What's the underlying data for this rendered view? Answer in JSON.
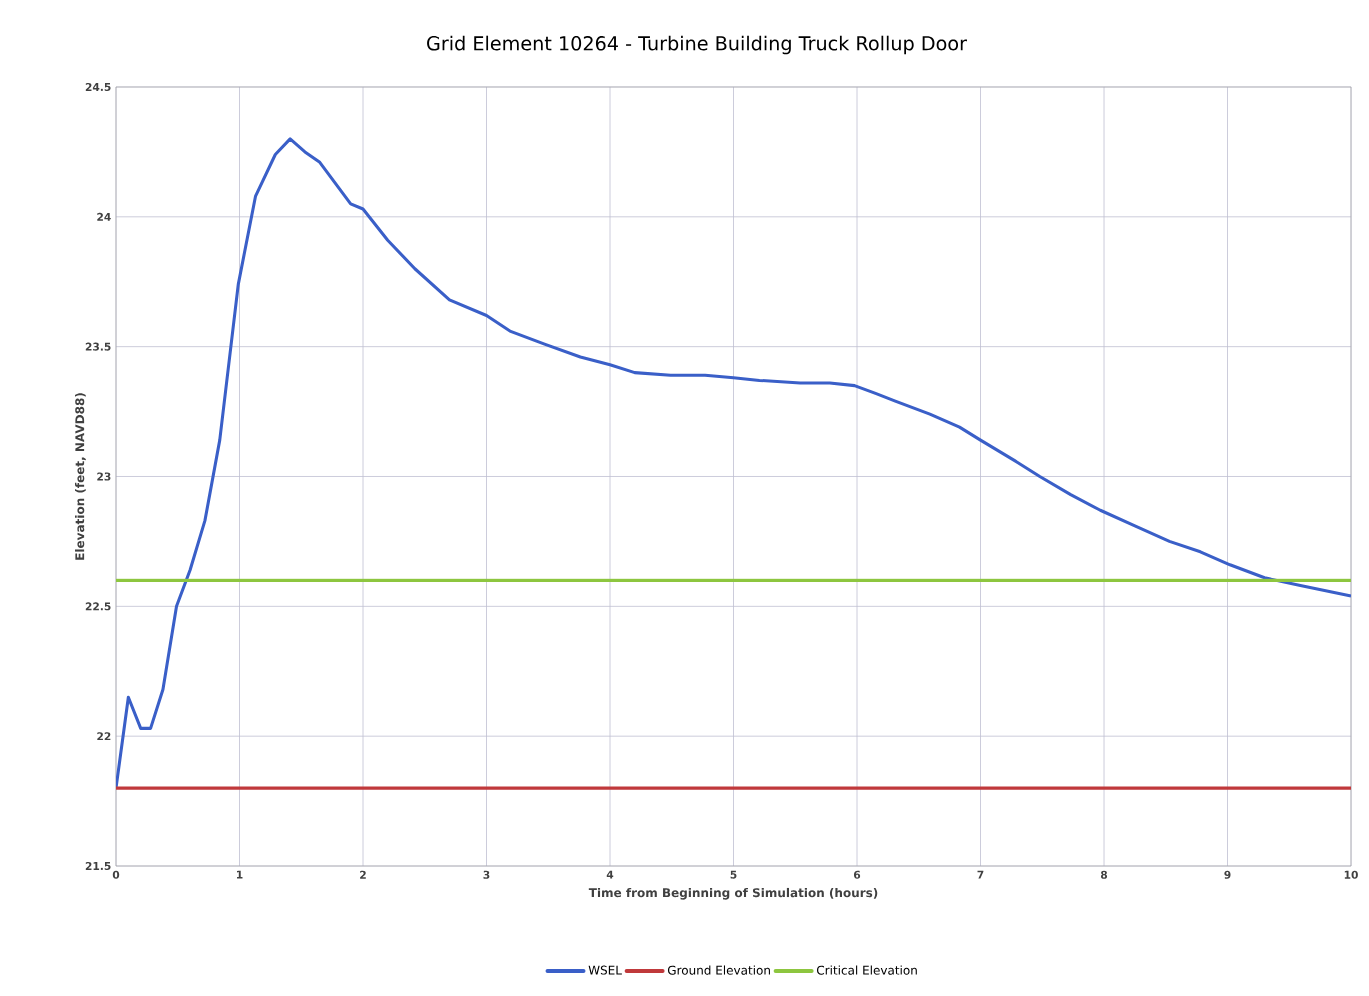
{
  "chart_data": {
    "type": "line",
    "title": "Grid Element 10264 - Turbine Building Truck Rollup Door",
    "xlabel": "Time from Beginning of Simulation (hours)",
    "ylabel": "Elevation (feet, NAVD88)",
    "xlim": [
      0,
      10
    ],
    "xticks": [
      0,
      1,
      2,
      3,
      4,
      5,
      6,
      7,
      8,
      9,
      10
    ],
    "ylim": [
      21.5,
      24.5
    ],
    "yticks": [
      21.5,
      22,
      22.5,
      23,
      23.5,
      24,
      24.5
    ],
    "grid": true,
    "legend": "bottom",
    "series": [
      {
        "name": "WSEL",
        "color": "#3a5fc8",
        "x": [
          0,
          0.1,
          0.2,
          0.28,
          0.38,
          0.49,
          0.6,
          0.72,
          0.84,
          0.99,
          1.13,
          1.29,
          1.41,
          1.53,
          1.65,
          1.9,
          2.0,
          2.2,
          2.42,
          2.7,
          3.0,
          3.19,
          3.47,
          3.76,
          4.0,
          4.2,
          4.49,
          4.77,
          5.0,
          5.21,
          5.54,
          5.78,
          5.98,
          6.15,
          6.31,
          6.59,
          6.83,
          7.0,
          7.28,
          7.48,
          7.73,
          7.97,
          8.25,
          8.53,
          8.78,
          9.02,
          9.3,
          9.59,
          10
        ],
        "values": [
          21.8,
          22.15,
          22.03,
          22.03,
          22.18,
          22.5,
          22.64,
          22.83,
          23.14,
          23.74,
          24.08,
          24.24,
          24.3,
          24.25,
          24.21,
          24.05,
          24.03,
          23.91,
          23.8,
          23.68,
          23.62,
          23.56,
          23.51,
          23.46,
          23.43,
          23.4,
          23.39,
          23.39,
          23.38,
          23.37,
          23.36,
          23.36,
          23.35,
          23.32,
          23.29,
          23.24,
          23.19,
          23.14,
          23.06,
          23.0,
          22.93,
          22.87,
          22.81,
          22.75,
          22.71,
          22.66,
          22.61,
          22.58,
          22.54
        ]
      },
      {
        "name": "Ground Elevation",
        "color": "#c0393b",
        "x": [
          0,
          10
        ],
        "values": [
          21.8,
          21.8
        ]
      },
      {
        "name": "Critical Elevation",
        "color": "#8dc63f",
        "x": [
          0,
          10
        ],
        "values": [
          22.6,
          22.6
        ]
      }
    ]
  }
}
